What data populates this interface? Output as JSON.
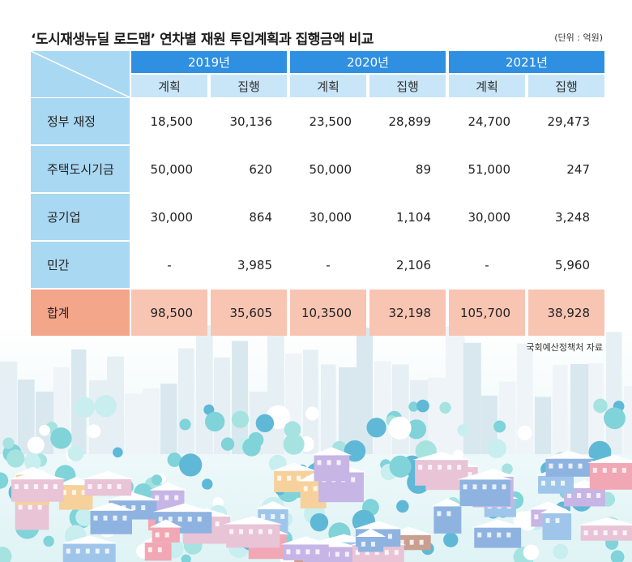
{
  "title": "‘도시재생뉴딜 로드맵’ 연차별 재원 투입계획과 집행금액 비교",
  "unit": "(단위 : 억원)",
  "table": {
    "years": [
      "2019년",
      "2020년",
      "2021년"
    ],
    "subheaders": [
      "계획",
      "집행",
      "계획",
      "집행",
      "계획",
      "집행"
    ],
    "rows": [
      {
        "label": "정부 재정",
        "cells": [
          "18,500",
          "30,136",
          "23,500",
          "28,899",
          "24,700",
          "29,473"
        ]
      },
      {
        "label": "주택도시기금",
        "cells": [
          "50,000",
          "620",
          "50,000",
          "89",
          "51,000",
          "247"
        ]
      },
      {
        "label": "공기업",
        "cells": [
          "30,000",
          "864",
          "30,000",
          "1,104",
          "30,000",
          "3,248"
        ]
      },
      {
        "label": "민간",
        "cells": [
          "-",
          "3,985",
          "-",
          "2,106",
          "-",
          "5,960"
        ]
      },
      {
        "label": "합계",
        "cells": [
          "98,500",
          "35,605",
          "10,3500",
          "32,198",
          "105,700",
          "38,928"
        ]
      }
    ]
  },
  "source": "국회예산정책처 자료"
}
